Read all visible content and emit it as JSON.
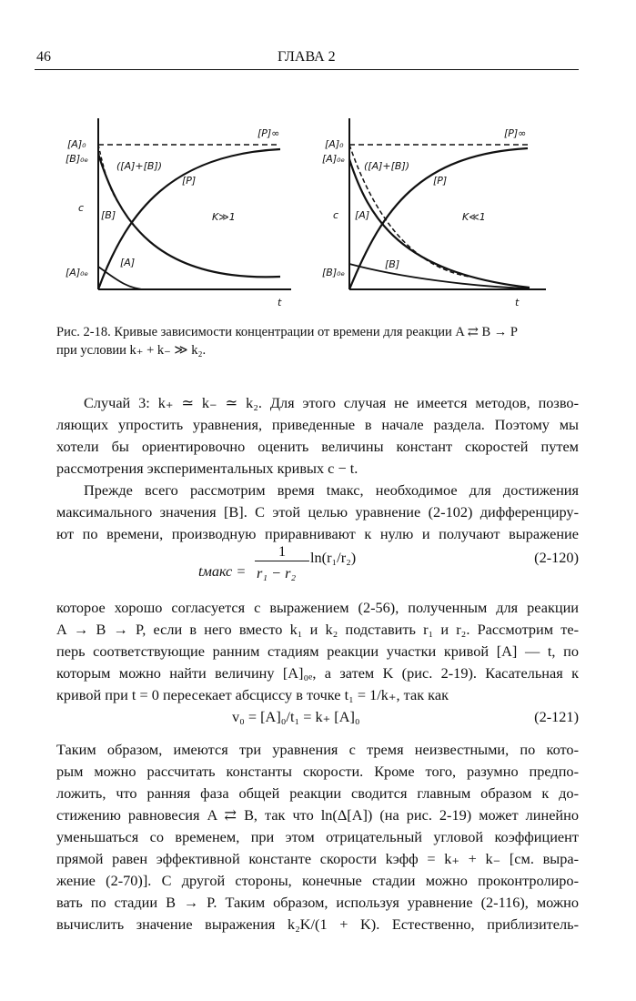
{
  "header": {
    "page_number": "46",
    "chapter": "ГЛАВА 2"
  },
  "figure": {
    "left": {
      "labels": {
        "a0": "[A]₀",
        "b0e": "[B]₀ₑ",
        "sum": "([A]+[B])",
        "p": "[P]",
        "pinf": "[P]∞",
        "c": "c",
        "b": "[B]",
        "a0e": "[A]₀ₑ",
        "a": "[A]",
        "k": "K≫1",
        "t": "t"
      }
    },
    "right": {
      "labels": {
        "a0": "[A]₀",
        "a0e": "[A]₀ₑ",
        "sum": "([A]+[B])",
        "p": "[P]",
        "pinf": "[P]∞",
        "c": "c",
        "a": "[A]",
        "b0e": "[B]₀ₑ",
        "b": "[B]",
        "k": "K≪1",
        "t": "t"
      }
    },
    "caption": [
      "Рис. 2-18. Кривые зависимости концентрации от времени для реакции A ⇄ B → P",
      "при условии k₊ + k₋ ≫ k₂."
    ]
  },
  "paragraphs": {
    "p1": [
      "Случай 3: k₊ ≃ k₋ ≃ k₂. Для этого случая не имеется методов, позво-",
      "ляющих упростить уравнения, приведенные в начале раздела. Поэтому мы",
      "хотели бы ориентировочно оценить величины констант скоростей путем",
      "рассмотрения экспериментальных кривых c − t."
    ],
    "p2": [
      "Прежде всего рассмотрим время tмакс, необходимое для достижения",
      "максимального значения [B]. С этой целью уравнение (2-102) дифференциру-",
      "ют по времени, производную приравнивают к нулю и получают выражение"
    ],
    "eq120": {
      "lhs": "tмакс =",
      "num": "1",
      "den": "r₁ − r₂",
      "rhs": "ln(r₁/r₂)",
      "number": "(2-120)"
    },
    "p3": [
      "которое хорошо согласуется с выражением (2-56), полученным для реакции",
      "A → B → P, если в него вместо k₁ и k₂ подставить r₁ и r₂. Рассмотрим те-",
      "перь соответствующие ранним стадиям реакции участки кривой [A] — t, по",
      "которым можно найти величину [A]₀ₑ, а затем K (рис. 2-19). Касательная к",
      "кривой при t = 0 пересекает абсциссу в точке t₁ = 1/k₊, так как"
    ],
    "eq121": {
      "text": "v₀ = [A]₀/t₁ = k₊ [A]₀",
      "number": "(2-121)"
    },
    "p4": [
      "Таким образом, имеются три уравнения с тремя неизвестными, по кото-",
      "рым можно рассчитать константы скорости. Кроме того, разумно предпо-",
      "ложить, что ранняя фаза общей реакции сводится главным образом к до-",
      "стижению равновесия A ⇄ B, так что ln(Δ[A]) (на рис. 2-19) может линейно",
      "уменьшаться со временем, при этом отрицательный угловой коэффициент",
      "прямой равен эффективной константе скорости kэфф = k₊ + k₋ [см. выра-",
      "жение (2-70)]. С другой стороны, конечные стадии можно проконтролиро-",
      "вать по стадии B → P. Таким образом, используя уравнение (2-116), можно",
      "вычислить значение выражения k₂K/(1 + K). Естественно, приблизитель-"
    ]
  }
}
